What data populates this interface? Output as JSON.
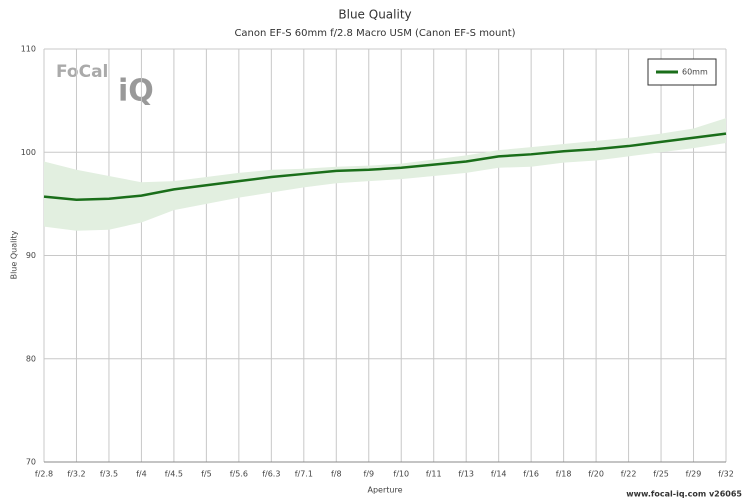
{
  "chart_data": {
    "type": "line",
    "title": "Blue Quality",
    "subtitle": "Canon EF-S 60mm f/2.8 Macro USM (Canon EF-S mount)",
    "x_label": "Aperture",
    "y_label": "Blue Quality",
    "logo": {
      "left": "FoCal",
      "right": "iQ"
    },
    "footer": "www.focal-iq.com  v26065",
    "categories": [
      "f/2.8",
      "f/3.2",
      "f/3.5",
      "f/4",
      "f/4.5",
      "f/5",
      "f/5.6",
      "f/6.3",
      "f/7.1",
      "f/8",
      "f/9",
      "f/10",
      "f/11",
      "f/13",
      "f/14",
      "f/16",
      "f/18",
      "f/20",
      "f/22",
      "f/25",
      "f/29",
      "f/32"
    ],
    "series": [
      {
        "name": "60mm",
        "color": "#1a6e1a",
        "band_color": "#e2efe0",
        "values": [
          95.7,
          95.4,
          95.5,
          95.8,
          96.4,
          96.8,
          97.2,
          97.6,
          97.9,
          98.2,
          98.3,
          98.5,
          98.8,
          99.1,
          99.6,
          99.8,
          100.1,
          100.3,
          100.6,
          101.0,
          101.4,
          101.8
        ],
        "upper": [
          99.1,
          98.3,
          97.7,
          97.1,
          97.2,
          97.6,
          98.0,
          98.3,
          98.4,
          98.6,
          98.7,
          98.9,
          99.3,
          99.7,
          100.2,
          100.5,
          100.8,
          101.1,
          101.4,
          101.8,
          102.3,
          103.3
        ],
        "lower": [
          92.8,
          92.4,
          92.5,
          93.2,
          94.4,
          95.0,
          95.6,
          96.1,
          96.6,
          97.0,
          97.2,
          97.4,
          97.7,
          98.0,
          98.5,
          98.6,
          99.0,
          99.2,
          99.6,
          100.0,
          100.4,
          100.9
        ]
      }
    ],
    "ylim": [
      70,
      110
    ],
    "yticks": [
      70,
      80,
      90,
      100,
      110
    ],
    "grid": true,
    "legend": "top-right"
  }
}
